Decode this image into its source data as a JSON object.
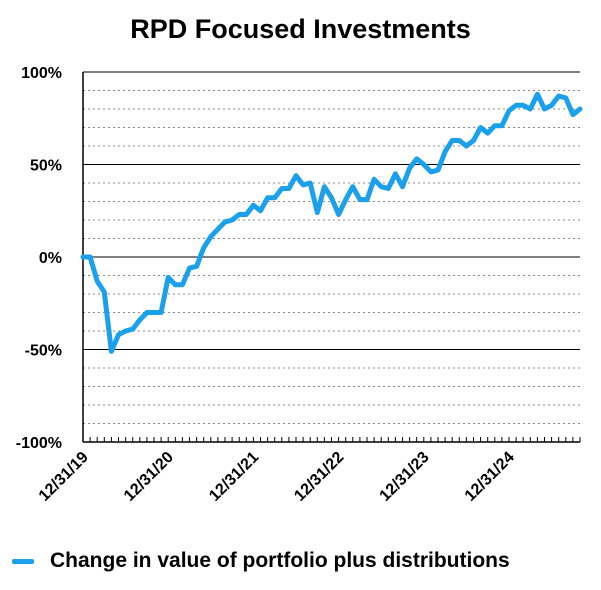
{
  "colors": {
    "series": "#1AA0EC",
    "grid_major": "#000000",
    "grid_minor": "#888888"
  },
  "chart_data": {
    "type": "line",
    "title": "RPD Focused Investments",
    "xlabel": "",
    "ylabel": "",
    "ylim": [
      -100,
      100
    ],
    "y_ticks": [
      {
        "value": 100,
        "label": "100%"
      },
      {
        "value": 50,
        "label": "50%"
      },
      {
        "value": 0,
        "label": "0%"
      },
      {
        "value": -50,
        "label": "-50%"
      },
      {
        "value": -100,
        "label": "-100%"
      }
    ],
    "x_ticks": [
      "12/31/19",
      "12/31/20",
      "12/31/21",
      "12/31/22",
      "12/31/23",
      "12/31/24"
    ],
    "grid": true,
    "legend_position": "bottom",
    "series": [
      {
        "name": "Change in value of portfolio plus distributions",
        "values": [
          0,
          0,
          -13,
          -19,
          -51,
          -42,
          -40,
          -39,
          -34,
          -30,
          -30,
          -30,
          -11,
          -15,
          -15,
          -6,
          -5,
          5,
          11,
          15,
          19,
          20,
          23,
          23,
          28,
          25,
          32,
          32,
          37,
          37,
          44,
          39,
          40,
          24,
          38,
          32,
          23,
          31,
          38,
          31,
          31,
          42,
          38,
          37,
          45,
          38,
          48,
          53,
          50,
          46,
          47,
          57,
          63,
          63,
          60,
          63,
          70,
          67,
          71,
          71,
          79,
          82,
          82,
          80,
          88,
          80,
          82,
          87,
          86,
          77,
          80
        ]
      }
    ]
  }
}
